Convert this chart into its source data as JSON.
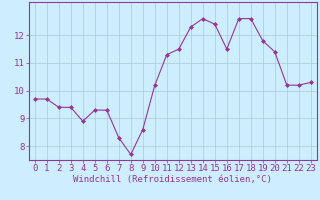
{
  "x": [
    0,
    1,
    2,
    3,
    4,
    5,
    6,
    7,
    8,
    9,
    10,
    11,
    12,
    13,
    14,
    15,
    16,
    17,
    18,
    19,
    20,
    21,
    22,
    23
  ],
  "y": [
    9.7,
    9.7,
    9.4,
    9.4,
    8.9,
    9.3,
    9.3,
    8.3,
    7.7,
    8.6,
    10.2,
    11.3,
    11.5,
    12.3,
    12.6,
    12.4,
    11.5,
    12.6,
    12.6,
    11.8,
    11.4,
    10.2,
    10.2,
    10.3
  ],
  "line_color": "#993399",
  "marker": "D",
  "marker_size": 2,
  "bg_color": "#cceeff",
  "grid_color": "#aacccc",
  "xlabel": "Windchill (Refroidissement éolien,°C)",
  "ylabel": "",
  "ylim": [
    7.5,
    13.2
  ],
  "xlim": [
    -0.5,
    23.5
  ],
  "yticks": [
    8,
    9,
    10,
    11,
    12
  ],
  "xticks": [
    0,
    1,
    2,
    3,
    4,
    5,
    6,
    7,
    8,
    9,
    10,
    11,
    12,
    13,
    14,
    15,
    16,
    17,
    18,
    19,
    20,
    21,
    22,
    23
  ],
  "font_color": "#993399",
  "xlabel_fontsize": 6.5,
  "tick_fontsize": 6.5
}
